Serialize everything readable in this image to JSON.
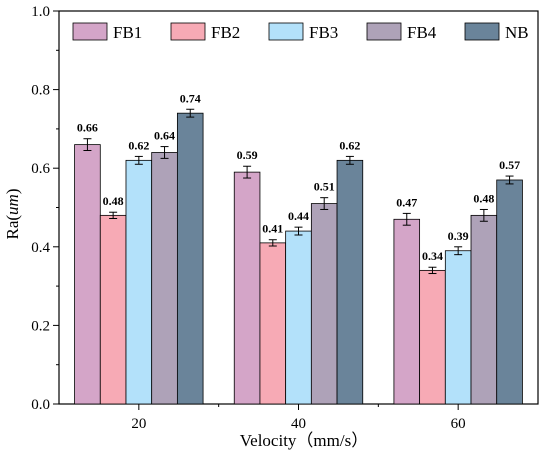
{
  "chart_data": {
    "type": "bar",
    "title": "",
    "xlabel": "Velocity（mm/s）",
    "ylabel": "Ra(",
    "ylabel_unit": "um",
    "ylabel_close": ")",
    "categories": [
      "20",
      "40",
      "60"
    ],
    "ylim": [
      0,
      1.0
    ],
    "yticks": [
      "0.0",
      "0.2",
      "0.4",
      "0.6",
      "0.8",
      "1.0"
    ],
    "grid": false,
    "legend_position": "top",
    "error_bars": true,
    "series": [
      {
        "name": "FB1",
        "color": "#d4a5c8",
        "values": [
          0.66,
          0.59,
          0.47
        ],
        "labels": [
          "0.66",
          "0.59",
          "0.47"
        ],
        "errors": [
          0.015,
          0.015,
          0.015
        ]
      },
      {
        "name": "FB2",
        "color": "#f7aab5",
        "values": [
          0.48,
          0.41,
          0.34
        ],
        "labels": [
          "0.48",
          "0.41",
          "0.34"
        ],
        "errors": [
          0.008,
          0.008,
          0.008
        ]
      },
      {
        "name": "FB3",
        "color": "#b3e1fa",
        "values": [
          0.62,
          0.44,
          0.39
        ],
        "labels": [
          "0.62",
          "0.44",
          "0.39"
        ],
        "errors": [
          0.01,
          0.01,
          0.01
        ]
      },
      {
        "name": "FB4",
        "color": "#aea2b8",
        "values": [
          0.64,
          0.51,
          0.48
        ],
        "labels": [
          "0.64",
          "0.51",
          "0.48"
        ],
        "errors": [
          0.015,
          0.015,
          0.015
        ]
      },
      {
        "name": "NB",
        "color": "#6a849a",
        "values": [
          0.74,
          0.62,
          0.57
        ],
        "labels": [
          "0.74",
          "0.62",
          "0.57"
        ],
        "errors": [
          0.01,
          0.01,
          0.01
        ]
      }
    ]
  }
}
